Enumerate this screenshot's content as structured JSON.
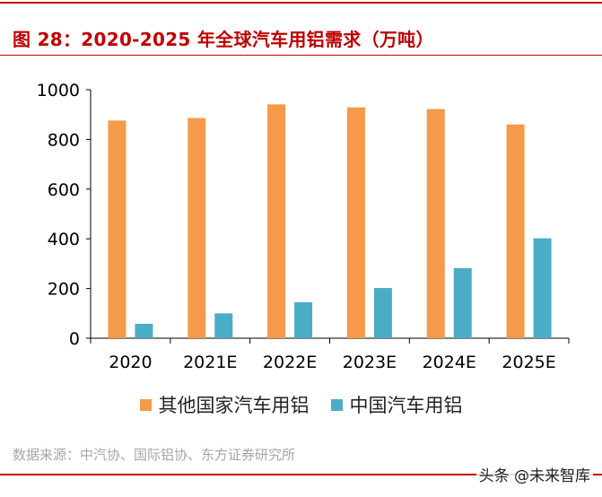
{
  "title": "图 28：2020-2025 年全球汽车用铝需求（万吨）",
  "source": "数据来源：中汽协、国际铝协、东方证券研究所",
  "watermark": "头条 @未来智库",
  "colors": {
    "accent": "#c00000",
    "series_other": "#f5994a",
    "series_china": "#4bacc6"
  },
  "chart_data": {
    "type": "bar",
    "categories": [
      "2020",
      "2021E",
      "2022E",
      "2023E",
      "2024E",
      "2025E"
    ],
    "series": [
      {
        "name": "其他国家汽车用铝",
        "values": [
          876,
          886,
          941,
          929,
          922,
          860
        ]
      },
      {
        "name": "中国汽车用铝",
        "values": [
          58,
          100,
          145,
          202,
          282,
          402
        ]
      }
    ],
    "ylim": [
      0,
      1000
    ],
    "yticks": [
      0,
      200,
      400,
      600,
      800,
      1000
    ],
    "grid": false,
    "legend": "bottom"
  }
}
